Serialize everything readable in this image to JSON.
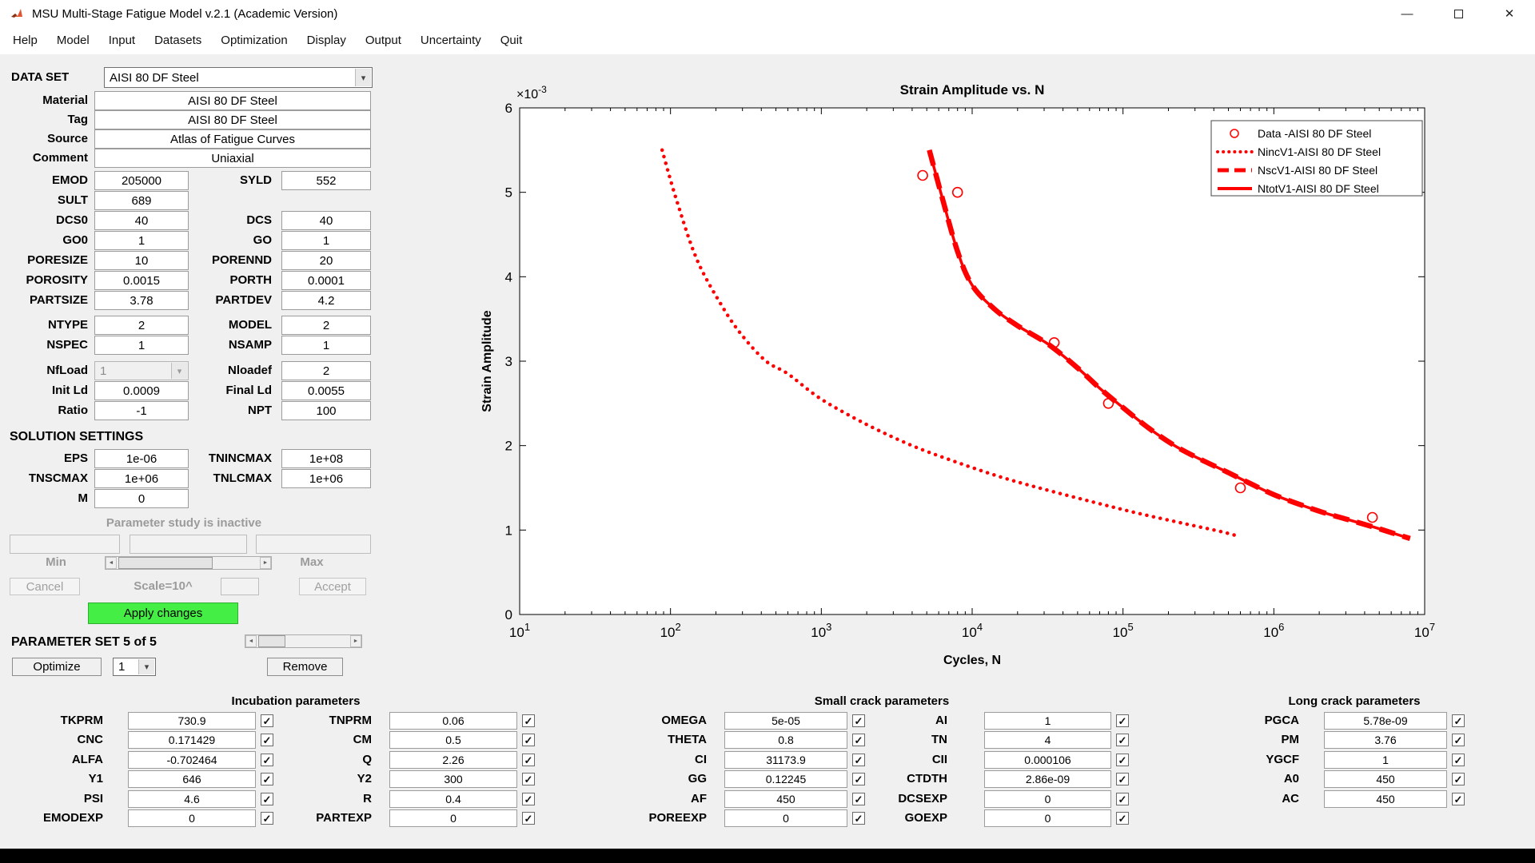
{
  "window": {
    "title": "MSU Multi-Stage Fatigue Model v.2.1 (Academic Version)"
  },
  "menu": {
    "items": [
      "Help",
      "Model",
      "Input",
      "Datasets",
      "Optimization",
      "Display",
      "Output",
      "Uncertainty",
      "Quit"
    ]
  },
  "icons": {
    "check": "✓",
    "dropdown_arrow": "▾",
    "slider_left": "◄",
    "slider_right": "►",
    "minimize": "—",
    "close": "✕"
  },
  "colors": {
    "series_red": "#ff0000",
    "apply_green": "#45ee45",
    "apply_green_border": "#2fae2f"
  },
  "left": {
    "dataset_label": "DATA SET",
    "dataset_value": "AISI 80 DF Steel",
    "material": {
      "label": "Material",
      "value": "AISI 80 DF Steel"
    },
    "tag": {
      "label": "Tag",
      "value": "AISI 80 DF Steel"
    },
    "source": {
      "label": "Source",
      "value": "Atlas of Fatigue Curves"
    },
    "comment": {
      "label": "Comment",
      "value": "Uniaxial"
    },
    "emod": {
      "label": "EMOD",
      "value": "205000"
    },
    "syld": {
      "label": "SYLD",
      "value": "552"
    },
    "sult": {
      "label": "SULT",
      "value": "689"
    },
    "dcs0": {
      "label": "DCS0",
      "value": "40"
    },
    "dcs": {
      "label": "DCS",
      "value": "40"
    },
    "go0": {
      "label": "GO0",
      "value": "1"
    },
    "go": {
      "label": "GO",
      "value": "1"
    },
    "poresize": {
      "label": "PORESIZE",
      "value": "10"
    },
    "porennd": {
      "label": "PORENND",
      "value": "20"
    },
    "porosity": {
      "label": "POROSITY",
      "value": "0.0015"
    },
    "porth": {
      "label": "PORTH",
      "value": "0.0001"
    },
    "partsize": {
      "label": "PARTSIZE",
      "value": "3.78"
    },
    "partdev": {
      "label": "PARTDEV",
      "value": "4.2"
    },
    "ntype": {
      "label": "NTYPE",
      "value": "2"
    },
    "model": {
      "label": "MODEL",
      "value": "2"
    },
    "nspec": {
      "label": "NSPEC",
      "value": "1"
    },
    "nsamp": {
      "label": "NSAMP",
      "value": "1"
    },
    "nfload": {
      "label": "NfLoad",
      "value": "1"
    },
    "nloadef": {
      "label": "Nloadef",
      "value": "2"
    },
    "initld": {
      "label": "Init Ld",
      "value": "0.0009"
    },
    "finalld": {
      "label": "Final Ld",
      "value": "0.0055"
    },
    "ratio": {
      "label": "Ratio",
      "value": "-1"
    },
    "npt": {
      "label": "NPT",
      "value": "100"
    },
    "solution_title": "SOLUTION SETTINGS",
    "eps": {
      "label": "EPS",
      "value": "1e-06"
    },
    "tnincmax": {
      "label": "TNINCMAX",
      "value": "1e+08"
    },
    "tnscmax": {
      "label": "TNSCMAX",
      "value": "1e+06"
    },
    "tnlcmax": {
      "label": "TNLCMAX",
      "value": "1e+06"
    },
    "m": {
      "label": "M",
      "value": "0"
    }
  },
  "study": {
    "status": "Parameter study is inactive",
    "min": "Min",
    "max": "Max",
    "cancel": "Cancel",
    "scale": "Scale=10^",
    "accept": "Accept",
    "apply": "Apply changes"
  },
  "paramset": {
    "title": "PARAMETER SET 5 of 5",
    "optimize": "Optimize",
    "index": "1",
    "remove": "Remove"
  },
  "bottom": {
    "incubation": {
      "title": "Incubation parameters",
      "col1": [
        {
          "label": "TKPRM",
          "value": "730.9"
        },
        {
          "label": "CNC",
          "value": "0.171429"
        },
        {
          "label": "ALFA",
          "value": "-0.702464"
        },
        {
          "label": "Y1",
          "value": "646"
        },
        {
          "label": "PSI",
          "value": "4.6"
        },
        {
          "label": "EMODEXP",
          "value": "0"
        }
      ],
      "col2": [
        {
          "label": "TNPRM",
          "value": "0.06"
        },
        {
          "label": "CM",
          "value": "0.5"
        },
        {
          "label": "Q",
          "value": "2.26"
        },
        {
          "label": "Y2",
          "value": "300"
        },
        {
          "label": "R",
          "value": "0.4"
        },
        {
          "label": "PARTEXP",
          "value": "0"
        }
      ]
    },
    "small_crack": {
      "title": "Small crack parameters",
      "col1": [
        {
          "label": "OMEGA",
          "value": "5e-05"
        },
        {
          "label": "THETA",
          "value": "0.8"
        },
        {
          "label": "CI",
          "value": "31173.9"
        },
        {
          "label": "GG",
          "value": "0.12245"
        },
        {
          "label": "AF",
          "value": "450"
        },
        {
          "label": "POREEXP",
          "value": "0"
        }
      ],
      "col2": [
        {
          "label": "AI",
          "value": "1"
        },
        {
          "label": "TN",
          "value": "4"
        },
        {
          "label": "CII",
          "value": "0.000106"
        },
        {
          "label": "CTDTH",
          "value": "2.86e-09"
        },
        {
          "label": "DCSEXP",
          "value": "0"
        },
        {
          "label": "GOEXP",
          "value": "0"
        }
      ]
    },
    "long_crack": {
      "title": "Long crack parameters",
      "col1": [
        {
          "label": "PGCA",
          "value": "5.78e-09"
        },
        {
          "label": "PM",
          "value": "3.76"
        },
        {
          "label": "YGCF",
          "value": "1"
        },
        {
          "label": "A0",
          "value": "450"
        },
        {
          "label": "AC",
          "value": "450"
        }
      ]
    }
  },
  "chart_data": {
    "type": "line",
    "title": "Strain Amplitude vs. N",
    "xlabel": "Cycles, N",
    "ylabel": "Strain Amplitude",
    "x_scale": "log",
    "xlim": [
      10,
      10000000
    ],
    "ylim": [
      0,
      6
    ],
    "y_units": "1e-3",
    "y_multiplier": "×10^-3",
    "y_ticks": [
      0,
      1,
      2,
      3,
      4,
      5,
      6
    ],
    "x_tick_labels": [
      "10^1",
      "10^2",
      "10^3",
      "10^4",
      "10^5",
      "10^6",
      "10^7"
    ],
    "grid": false,
    "legend_position": "top-right",
    "series": [
      {
        "name": "Data -AISI 80 DF Steel",
        "style": "scatter",
        "color": "#ff0000",
        "points": [
          [
            4700,
            5.2
          ],
          [
            8000,
            5.0
          ],
          [
            35000,
            3.22
          ],
          [
            80000,
            2.5
          ],
          [
            600000,
            1.5
          ],
          [
            4500000,
            1.15
          ]
        ]
      },
      {
        "name": "NincV1-AISI 80 DF Steel",
        "style": "dotted",
        "color": "#ff0000",
        "points": [
          [
            88,
            5.5
          ],
          [
            110,
            4.9
          ],
          [
            150,
            4.2
          ],
          [
            220,
            3.65
          ],
          [
            300,
            3.3
          ],
          [
            430,
            3.0
          ],
          [
            600,
            2.85
          ],
          [
            1000,
            2.55
          ],
          [
            2000,
            2.25
          ],
          [
            4000,
            2.0
          ],
          [
            8000,
            1.8
          ],
          [
            16000,
            1.62
          ],
          [
            32000,
            1.47
          ],
          [
            64000,
            1.33
          ],
          [
            125000,
            1.2
          ],
          [
            250000,
            1.08
          ],
          [
            450000,
            0.98
          ],
          [
            600000,
            0.92
          ]
        ]
      },
      {
        "name": "NscV1-AISI 80 DF Steel",
        "style": "dashed",
        "color": "#ff0000",
        "points": [
          [
            5200,
            5.5
          ],
          [
            6300,
            4.95
          ],
          [
            8000,
            4.3
          ],
          [
            10000,
            3.9
          ],
          [
            14000,
            3.62
          ],
          [
            20000,
            3.42
          ],
          [
            32000,
            3.2
          ],
          [
            50000,
            2.92
          ],
          [
            70000,
            2.68
          ],
          [
            100000,
            2.45
          ],
          [
            150000,
            2.2
          ],
          [
            220000,
            2.0
          ],
          [
            316000,
            1.85
          ],
          [
            500000,
            1.68
          ],
          [
            700000,
            1.55
          ],
          [
            1000000,
            1.42
          ],
          [
            1500000,
            1.3
          ],
          [
            2200000,
            1.2
          ],
          [
            3160000,
            1.12
          ],
          [
            4500000,
            1.04
          ],
          [
            6000000,
            0.97
          ],
          [
            8000000,
            0.9
          ]
        ]
      },
      {
        "name": "NtotV1-AISI 80 DF Steel",
        "style": "solid",
        "color": "#ff0000",
        "points": [
          [
            5200,
            5.5
          ],
          [
            6300,
            4.95
          ],
          [
            8000,
            4.3
          ],
          [
            10000,
            3.9
          ],
          [
            14000,
            3.62
          ],
          [
            20000,
            3.42
          ],
          [
            32000,
            3.2
          ],
          [
            50000,
            2.92
          ],
          [
            70000,
            2.68
          ],
          [
            100000,
            2.45
          ],
          [
            150000,
            2.2
          ],
          [
            220000,
            2.0
          ],
          [
            316000,
            1.85
          ],
          [
            500000,
            1.68
          ],
          [
            700000,
            1.55
          ],
          [
            1000000,
            1.42
          ],
          [
            1500000,
            1.3
          ],
          [
            2200000,
            1.2
          ],
          [
            3160000,
            1.12
          ],
          [
            4500000,
            1.04
          ],
          [
            6000000,
            0.97
          ],
          [
            8000000,
            0.9
          ]
        ]
      }
    ]
  }
}
